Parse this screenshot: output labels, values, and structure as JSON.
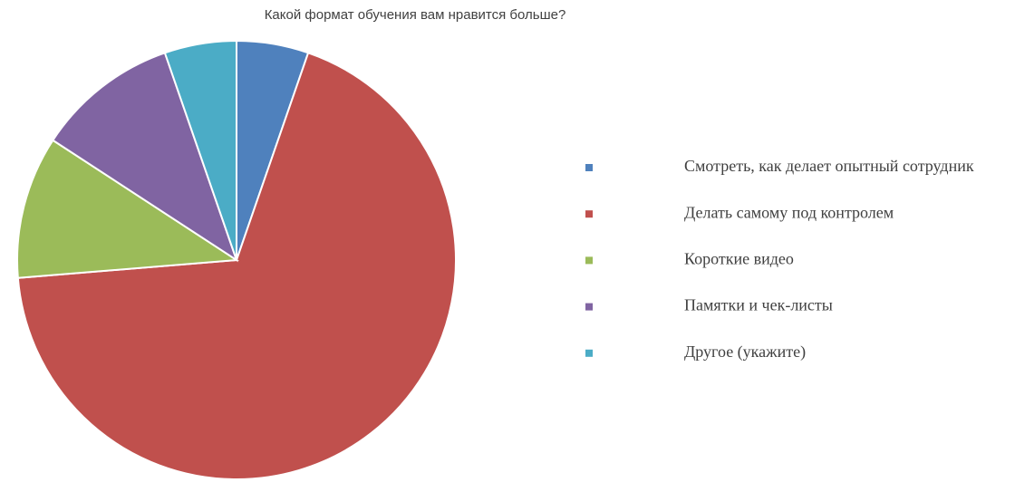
{
  "chart_data": {
    "type": "pie",
    "title": "Какой формат обучения вам нравится больше?",
    "categories": [
      "Смотреть, как делает опытный сотрудник",
      "Делать самому под контролем",
      "Короткие видео",
      "Памятки и чек-листы",
      "Другое (укажите)"
    ],
    "values": [
      5.3,
      68.4,
      10.5,
      10.5,
      5.3
    ],
    "colors": [
      "#4f81bd",
      "#c0504d",
      "#9bbb59",
      "#8064a2",
      "#4bacc6"
    ],
    "legend": "right"
  }
}
